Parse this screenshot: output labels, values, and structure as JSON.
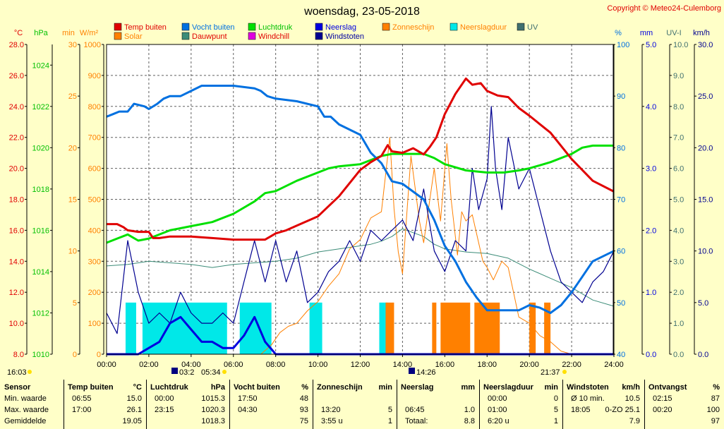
{
  "title": "woensdag, 23-05-2018",
  "copyright": "Copyright © Meteo24-Culemborg",
  "colors": {
    "temp": "#e00000",
    "solar": "#ff8000",
    "humidity": "#0070e0",
    "dewpoint": "#3c8c78",
    "pressure": "#00e000",
    "windchill": "#e000e0",
    "rain": "#0000e0",
    "gust": "#000090",
    "sunshine": "#ff8000",
    "raindur": "#00e8e8",
    "uv": "#407070"
  },
  "legend": [
    {
      "key": "temp",
      "label": "Temp buiten"
    },
    {
      "key": "solar",
      "label": "Solar"
    },
    {
      "key": "humidity",
      "label": "Vocht buiten"
    },
    {
      "key": "dewpoint",
      "label": "Dauwpunt"
    },
    {
      "key": "pressure",
      "label": "Luchtdruk"
    },
    {
      "key": "windchill",
      "label": "Windchill"
    },
    {
      "key": "rain",
      "label": "Neerslag"
    },
    {
      "key": "gust",
      "label": "Windstoten"
    },
    {
      "key": "sunshine",
      "label": "Zonneschijn"
    },
    {
      "key": "raindur",
      "label": "Neerslagduur"
    },
    {
      "key": "uv",
      "label": "UV"
    }
  ],
  "axes_units": {
    "temp": "°C",
    "pressure": "hPa",
    "minutes": "min",
    "solar": "W/m²",
    "humidity": "%",
    "rain": "mm",
    "uv": "UV-I",
    "wind": "km/h"
  },
  "sun": {
    "rise": "05:34",
    "set": "21:37",
    "moonrise": "03:2",
    "moonset": "14:26",
    "left_time": "16:03"
  },
  "chart_data": {
    "type": "line",
    "x_range": [
      "00:00",
      "24:00"
    ],
    "x_ticks": [
      "00:00",
      "02:00",
      "04:00",
      "06:00",
      "08:00",
      "10:00",
      "12:00",
      "14:00",
      "16:00",
      "18:00",
      "20:00",
      "22:00",
      "24:00"
    ],
    "axes": {
      "temp": {
        "range": [
          8,
          28
        ],
        "ticks": [
          "8.0",
          "10.0",
          "12.0",
          "14.0",
          "16.0",
          "18.0",
          "20.0",
          "22.0",
          "24.0",
          "26.0",
          "28.0"
        ]
      },
      "pressure": {
        "range": [
          1010,
          1025
        ],
        "ticks": [
          "1010",
          "1012",
          "1014",
          "1016",
          "1018",
          "1020",
          "1022",
          "1024"
        ]
      },
      "minutes": {
        "range": [
          0,
          30
        ],
        "ticks": [
          "0",
          "5",
          "10",
          "15",
          "20",
          "25",
          "30"
        ]
      },
      "solar": {
        "range": [
          0,
          1000
        ],
        "ticks": [
          "0",
          "100",
          "200",
          "300",
          "400",
          "500",
          "600",
          "700",
          "800",
          "900",
          "1000"
        ]
      },
      "humidity": {
        "range": [
          40,
          100
        ],
        "ticks": [
          "40",
          "50",
          "60",
          "70",
          "80",
          "90",
          "100"
        ]
      },
      "rain": {
        "range": [
          0,
          5
        ],
        "ticks": [
          "0.0",
          "1.0",
          "2.0",
          "3.0",
          "4.0",
          "5.0"
        ]
      },
      "uv": {
        "range": [
          0,
          10
        ],
        "ticks": [
          "0.0",
          "1.0",
          "2.0",
          "3.0",
          "4.0",
          "5.0",
          "6.0",
          "7.0",
          "8.0",
          "9.0",
          "10.0"
        ]
      },
      "wind": {
        "range": [
          0,
          30
        ],
        "ticks": [
          "0.0",
          "5.0",
          "10.0",
          "15.0",
          "20.0",
          "25.0",
          "30.0"
        ]
      }
    },
    "grid": true,
    "series": [
      {
        "name": "Temp buiten",
        "axis": "temp",
        "color": "#e00000",
        "x": [
          0,
          0.5,
          0.8,
          1,
          1.5,
          2,
          2.2,
          2.5,
          3,
          4,
          5,
          6,
          7,
          7.5,
          8,
          8.5,
          9,
          10,
          11,
          12,
          12.5,
          13,
          13.3,
          13.5,
          14,
          14.5,
          15,
          15.3,
          15.6,
          16,
          16.5,
          17,
          17.3,
          17.7,
          18,
          18.5,
          19,
          19.5,
          20,
          21,
          22,
          23,
          24
        ],
        "y": [
          16.4,
          16.4,
          16.2,
          16.0,
          15.9,
          15.9,
          15.5,
          15.5,
          15.6,
          15.6,
          15.5,
          15.4,
          15.4,
          15.4,
          15.8,
          16.0,
          16.3,
          16.9,
          18.2,
          19.9,
          20.4,
          20.8,
          21.5,
          21.1,
          21.0,
          21.3,
          20.9,
          21.4,
          22.0,
          23.5,
          24.8,
          25.8,
          25.4,
          25.5,
          25.0,
          24.7,
          24.6,
          23.9,
          23.4,
          22.3,
          20.6,
          19.2,
          18.5
        ]
      },
      {
        "name": "Vocht buiten",
        "axis": "humidity",
        "color": "#0070e0",
        "x": [
          0,
          0.3,
          0.6,
          1,
          1.3,
          1.8,
          2,
          2.4,
          2.7,
          3,
          3.5,
          4,
          4.5,
          5,
          6,
          7,
          7.3,
          7.6,
          8,
          9,
          10,
          10.3,
          10.6,
          11,
          12,
          12.5,
          13,
          13.5,
          14,
          14.5,
          15,
          15.5,
          16,
          16.5,
          17,
          17.5,
          18,
          18.5,
          19,
          19.5,
          20,
          20.5,
          21,
          21.5,
          22,
          22.5,
          23,
          24
        ],
        "y": [
          86,
          86.5,
          87,
          87,
          88.5,
          88,
          87.5,
          88.5,
          89.5,
          90,
          90,
          91,
          92,
          92,
          92,
          91.5,
          91,
          90,
          89.5,
          89,
          88,
          86,
          86,
          84.5,
          82.5,
          79,
          77,
          73.5,
          73,
          71.5,
          70,
          66,
          61,
          58,
          54,
          51,
          48.5,
          48.5,
          48.5,
          48.5,
          49.5,
          49,
          48,
          49.5,
          52,
          55,
          58,
          60
        ]
      },
      {
        "name": "Luchtdruk",
        "axis": "pressure",
        "color": "#00e000",
        "x": [
          0,
          0.5,
          1,
          1.5,
          2,
          3,
          4,
          5,
          6,
          7,
          7.5,
          8,
          9,
          10,
          10.5,
          11,
          12,
          13,
          13.5,
          14,
          15,
          15.5,
          16,
          17,
          18,
          18.8,
          19.5,
          20,
          21,
          22,
          22.5,
          23,
          24
        ],
        "y": [
          1015.4,
          1015.6,
          1015.8,
          1015.5,
          1015.6,
          1016.0,
          1016.2,
          1016.4,
          1016.8,
          1017.4,
          1017.8,
          1017.9,
          1018.4,
          1018.8,
          1019.0,
          1019.1,
          1019.2,
          1019.6,
          1019.7,
          1019.7,
          1019.7,
          1019.5,
          1019.2,
          1018.9,
          1018.8,
          1018.8,
          1018.9,
          1019.0,
          1019.3,
          1019.7,
          1020.0,
          1020.1,
          1020.1
        ]
      },
      {
        "name": "Dauwpunt",
        "axis": "temp",
        "color": "#3c8c78",
        "x": [
          0,
          1,
          2,
          3,
          4,
          5,
          6,
          7,
          8,
          9,
          10,
          11,
          12,
          12.5,
          13,
          13.5,
          14,
          15,
          15.5,
          16,
          17,
          18,
          19,
          20,
          21,
          22,
          23,
          24
        ],
        "y": [
          13.7,
          13.8,
          14.0,
          13.9,
          13.8,
          13.6,
          13.8,
          13.9,
          14.0,
          14.2,
          14.6,
          14.8,
          15.0,
          15.1,
          15.3,
          15.6,
          16.1,
          15.6,
          15.1,
          14.8,
          14.6,
          14.5,
          14.2,
          13.5,
          12.9,
          12.3,
          11.5,
          11.1
        ]
      },
      {
        "name": "Solar",
        "axis": "solar",
        "color": "#ff8000",
        "x": [
          0,
          7.3,
          7.8,
          8.2,
          8.6,
          9,
          9.5,
          10,
          10.5,
          11,
          11.5,
          12,
          12.5,
          13,
          13.4,
          13.6,
          13.8,
          14,
          14.4,
          14.8,
          15,
          15.5,
          15.8,
          16.1,
          16.3,
          16.6,
          16.8,
          17,
          17.3,
          17.6,
          17.8,
          18,
          18.3,
          18.7,
          19,
          19.5,
          20,
          20.5,
          21,
          21.5,
          22,
          24
        ],
        "y": [
          0,
          0,
          30,
          70,
          90,
          100,
          140,
          170,
          220,
          260,
          340,
          370,
          440,
          460,
          700,
          470,
          330,
          260,
          640,
          430,
          360,
          600,
          430,
          680,
          500,
          320,
          460,
          430,
          450,
          360,
          300,
          280,
          240,
          300,
          280,
          120,
          100,
          60,
          40,
          10,
          0,
          0
        ]
      },
      {
        "name": "Windstoten",
        "axis": "wind",
        "color": "#000090",
        "x": [
          0,
          0.5,
          1,
          1.5,
          2,
          2.5,
          3,
          3.5,
          4,
          4.5,
          5,
          5.5,
          6,
          6.5,
          7,
          7.5,
          8,
          8.5,
          9,
          9.5,
          10,
          10.5,
          11,
          11.5,
          12,
          12.5,
          13,
          13.5,
          14,
          14.5,
          15,
          15.5,
          16,
          16.5,
          17,
          17.3,
          17.6,
          18,
          18.2,
          18.4,
          18.7,
          19,
          19.5,
          20,
          20.5,
          21,
          21.5,
          22,
          22.5,
          23,
          23.5,
          24
        ],
        "y": [
          4,
          2,
          11,
          6,
          3,
          4,
          3,
          6,
          4,
          3,
          3,
          4,
          3,
          7,
          11,
          7,
          11,
          7,
          10,
          5,
          6,
          8,
          9,
          11,
          9,
          12,
          11,
          12,
          13,
          11,
          16,
          10,
          8,
          11,
          10,
          18,
          14,
          17,
          24,
          18,
          14,
          21,
          16,
          18,
          14,
          10,
          7,
          6,
          5,
          7,
          8,
          10
        ]
      },
      {
        "name": "Neerslag",
        "axis": "rain",
        "color": "#0000e0",
        "x": [
          0,
          0.5,
          1,
          1.5,
          2,
          2.5,
          3,
          3.5,
          4,
          4.5,
          5,
          5.5,
          6,
          6.5,
          7,
          7.5,
          8,
          24
        ],
        "y": [
          0,
          0,
          0,
          0,
          0.1,
          0.2,
          0.5,
          0.6,
          0.4,
          0.2,
          0.2,
          0.1,
          0.1,
          0.3,
          0.6,
          0.2,
          0,
          0
        ]
      }
    ],
    "bars": [
      {
        "name": "Neerslagduur",
        "axis": "minutes",
        "color": "#00e8e8",
        "intervals": [
          [
            0.9,
            1.4,
            5
          ],
          [
            1.7,
            5.7,
            5
          ],
          [
            6.3,
            7.8,
            5
          ],
          [
            9.6,
            10.2,
            5
          ],
          [
            12.9,
            13.3,
            5
          ]
        ]
      },
      {
        "name": "Zonneschijn",
        "axis": "minutes",
        "color": "#ff8000",
        "intervals": [
          [
            13.2,
            13.6,
            5
          ],
          [
            15.4,
            15.6,
            5
          ],
          [
            15.8,
            17.2,
            5
          ],
          [
            17.4,
            18.6,
            5
          ],
          [
            20.0,
            20.3,
            5
          ],
          [
            20.7,
            21.0,
            5
          ]
        ]
      }
    ]
  },
  "summary": {
    "row_labels": [
      "Sensor",
      "Min. waarde",
      "Max. waarde",
      "Gemiddelde"
    ],
    "columns": [
      {
        "title": "Temp buiten",
        "unit": "°C",
        "rows": [
          [
            "06:55",
            "15.0"
          ],
          [
            "17:00",
            "26.1"
          ],
          [
            "",
            "19.05"
          ]
        ]
      },
      {
        "title": "Luchtdruk",
        "unit": "hPa",
        "rows": [
          [
            "00:00",
            "1015.3"
          ],
          [
            "23:15",
            "1020.3"
          ],
          [
            "",
            "1018.3"
          ]
        ]
      },
      {
        "title": "Vocht buiten",
        "unit": "%",
        "rows": [
          [
            "17:50",
            "48"
          ],
          [
            "04:30",
            "93"
          ],
          [
            "",
            "75"
          ]
        ]
      },
      {
        "title": "Zonneschijn",
        "unit": "min",
        "rows": [
          [
            "",
            ""
          ],
          [
            "13:20",
            "5"
          ],
          [
            "3:55 u",
            "1"
          ]
        ]
      },
      {
        "title": "Neerslag",
        "unit": "mm",
        "rows": [
          [
            "",
            ""
          ],
          [
            "06:45",
            "1.0"
          ],
          [
            "Totaal:",
            "8.8"
          ]
        ]
      },
      {
        "title": "Neerslagduur",
        "unit": "min",
        "rows": [
          [
            "00:00",
            "0"
          ],
          [
            "01:00",
            "5"
          ],
          [
            "6:20 u",
            "1"
          ]
        ]
      },
      {
        "title": "Windstoten",
        "unit": "km/h",
        "rows": [
          [
            "Ø 10 min.",
            "10.5"
          ],
          [
            "18:05",
            "0-ZO 25.1"
          ],
          [
            "",
            "7.9"
          ]
        ]
      },
      {
        "title": "Ontvangst",
        "unit": "%",
        "rows": [
          [
            "02:15",
            "87"
          ],
          [
            "00:20",
            "100"
          ],
          [
            "",
            "97"
          ]
        ]
      }
    ]
  }
}
